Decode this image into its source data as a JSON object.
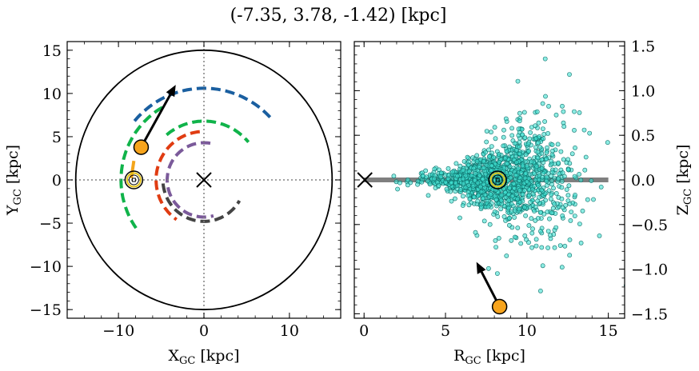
{
  "title": "(-7.35, 3.78, -1.42) [kpc]",
  "chart_data": [
    {
      "type": "scatter",
      "panel": "left",
      "xlabel_main": "X",
      "xlabel_sub": "GC",
      "xlabel_unit": " [kpc]",
      "ylabel_main": "Y",
      "ylabel_sub": "GC",
      "ylabel_unit": " [kpc]",
      "xlim": [
        -16,
        16
      ],
      "ylim": [
        -16,
        16
      ],
      "xticks": [
        -10,
        0,
        10
      ],
      "yticks": [
        -15,
        -10,
        -5,
        0,
        5,
        10,
        15
      ],
      "xtick_labels": [
        "−10",
        "0",
        "10"
      ],
      "ytick_labels": [
        "−15",
        "−10",
        "−5",
        "0",
        "5",
        "10",
        "15"
      ],
      "boundary_circle_radius": 15,
      "galactic_center": [
        0,
        0
      ],
      "sun": [
        -8.2,
        0
      ],
      "object": [
        -7.35,
        3.78
      ],
      "velocity_arrow": {
        "from": [
          -7.35,
          3.78
        ],
        "to": [
          -3.3,
          11.0
        ]
      },
      "arms": [
        {
          "color": "#1a5fa0",
          "radius": 10.6,
          "start_deg": 140,
          "end_deg": 42
        },
        {
          "color": "#10b34a",
          "radius": 9.7,
          "start_deg": 120,
          "end_deg": 215
        },
        {
          "color": "#10b34a",
          "radius": 6.8,
          "start_deg": 130,
          "end_deg": 40
        },
        {
          "color": "#e03c12",
          "radius": 5.6,
          "start_deg": 95,
          "end_deg": 235
        },
        {
          "color": "#7b5a9a",
          "radius": 4.3,
          "start_deg": 80,
          "end_deg": 285
        },
        {
          "color": "#444444",
          "radius": 4.8,
          "start_deg": 185,
          "end_deg": 330
        }
      ],
      "short_arm": {
        "color": "#f3a51b",
        "x": [
          -8.2,
          -8.5
        ],
        "y": [
          2.2,
          0.2
        ]
      }
    },
    {
      "type": "scatter",
      "panel": "right",
      "xlabel_main": "R",
      "xlabel_sub": "GC",
      "xlabel_unit": " [kpc]",
      "ylabel_main": "Z",
      "ylabel_sub": "GC",
      "ylabel_unit": " [kpc]",
      "xlim": [
        -0.6,
        16
      ],
      "ylim": [
        -1.55,
        1.55
      ],
      "xticks": [
        0,
        5,
        10,
        15
      ],
      "yticks": [
        -1.5,
        -1.0,
        -0.5,
        0.0,
        0.5,
        1.0,
        1.5
      ],
      "xtick_labels": [
        "0",
        "5",
        "10",
        "15"
      ],
      "ytick_labels": [
        "−1.5",
        "−1.0",
        "−0.5",
        "0.0",
        "0.5",
        "1.0",
        "1.5"
      ],
      "disk_line": {
        "x": [
          0,
          15
        ],
        "y": 0
      },
      "galactic_center": [
        0,
        0
      ],
      "sun": [
        8.2,
        0
      ],
      "object": [
        8.32,
        -1.42
      ],
      "velocity_arrow": {
        "from": [
          8.32,
          -1.42
        ],
        "to": [
          6.9,
          -0.92
        ]
      },
      "point_color": "#40e0d0",
      "points_seed": 7,
      "points_count": 1400
    }
  ]
}
